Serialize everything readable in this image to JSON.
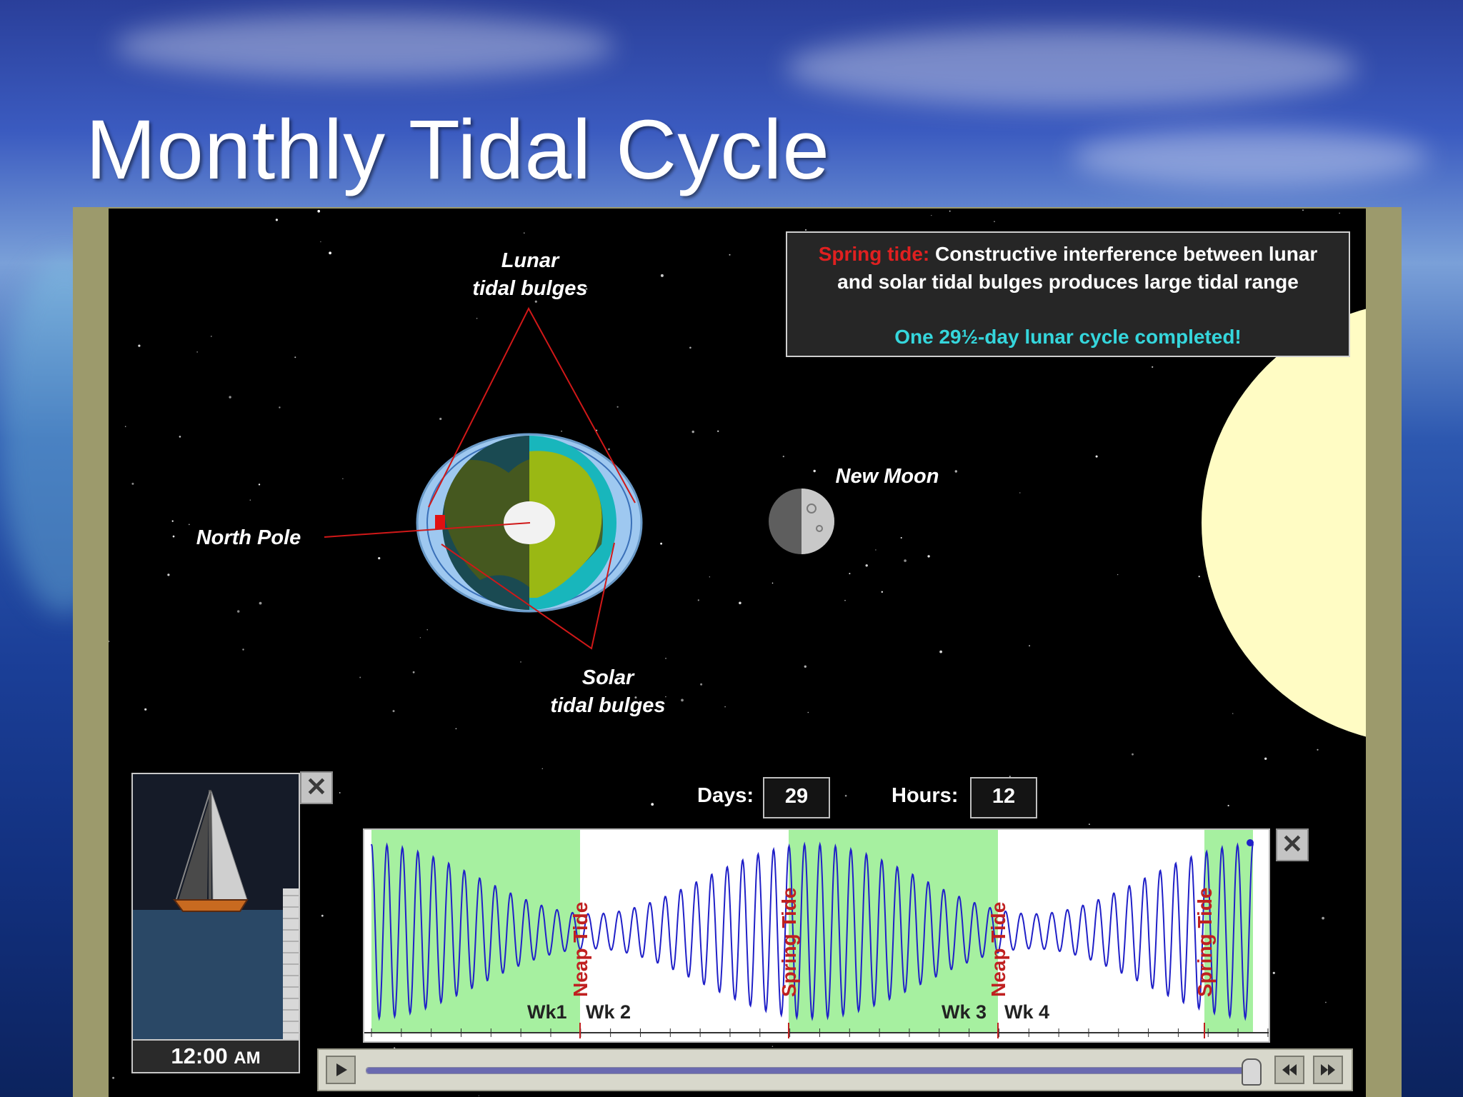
{
  "slide": {
    "title": "Monthly Tidal Cycle"
  },
  "info_box": {
    "spring_label": "Spring tide:",
    "spring_text": " Constructive interference between lunar",
    "spring_text_2": "and solar tidal bulges produces large tidal range",
    "cycle_text": "One 29½-day lunar cycle completed!"
  },
  "labels": {
    "lunar_bulges_1": "Lunar",
    "lunar_bulges_2": "tidal bulges",
    "solar_bulges_1": "Solar",
    "solar_bulges_2": "tidal bulges",
    "north_pole": "North Pole",
    "moon_phase": "New Moon"
  },
  "counters": {
    "days_label": "Days:",
    "days_value": "29",
    "hours_label": "Hours:",
    "hours_value": "12"
  },
  "boat_panel": {
    "time": "12:00",
    "ampm": "AM"
  },
  "tide_chart": {
    "week_labels": [
      "Wk1",
      "Wk 2",
      "Wk 3",
      "Wk 4"
    ],
    "event_labels": [
      "Neap Tide",
      "Spring Tide",
      "Neap Tide",
      "Spring Tide"
    ]
  },
  "player": {
    "progress": 0.99
  },
  "icons": {
    "close": "close-icon",
    "play": "play-icon",
    "rewind": "rewind-icon",
    "fast_forward": "fast-forward-icon"
  },
  "colors": {
    "spring_tide_label": "#e02020",
    "cycle_text": "#35d6dc",
    "tide_curve": "#2020c8",
    "spring_highlight": "#a6f0a0",
    "event_text": "#c02020"
  }
}
